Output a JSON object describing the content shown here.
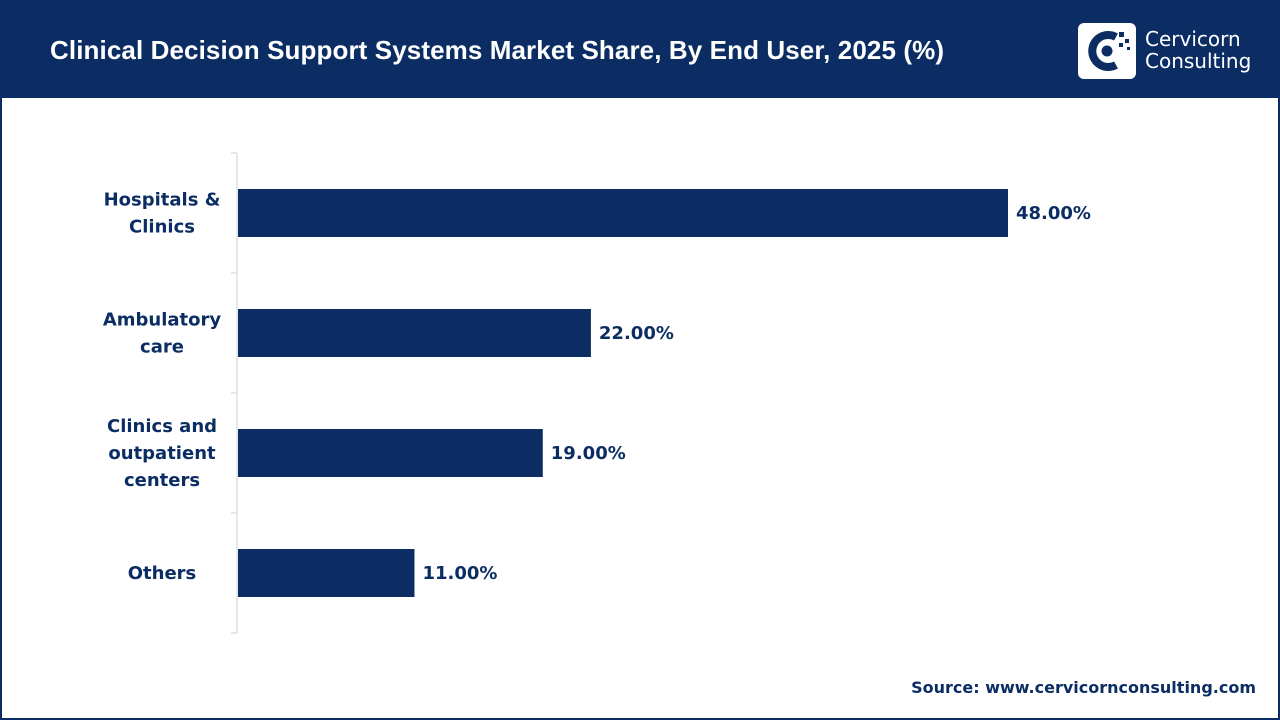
{
  "header": {
    "title": "Clinical Decision Support Systems Market Share, By End User, 2025 (%)"
  },
  "logo": {
    "line1": "Cervicorn",
    "line2": "Consulting",
    "icon": "cervicorn-logo-icon"
  },
  "colors": {
    "brand": "#0b2d63",
    "bar": "#0b2d63",
    "background": "#ffffff"
  },
  "chart_data": {
    "type": "bar",
    "orientation": "horizontal",
    "title": "Clinical Decision Support Systems Market Share, By End User, 2025 (%)",
    "categories": [
      [
        "Hospitals &",
        "Clinics"
      ],
      [
        "Ambulatory",
        "care"
      ],
      [
        "Clinics and",
        "outpatient",
        "centers"
      ],
      [
        "Others"
      ]
    ],
    "values": [
      48,
      22,
      19,
      11
    ],
    "value_labels": [
      "48.00%",
      "22.00%",
      "19.00%",
      "11.00%"
    ],
    "xlim": [
      0,
      60
    ],
    "grid": false,
    "legend": "none"
  },
  "footer": {
    "source": "Source: www.cervicornconsulting.com"
  }
}
